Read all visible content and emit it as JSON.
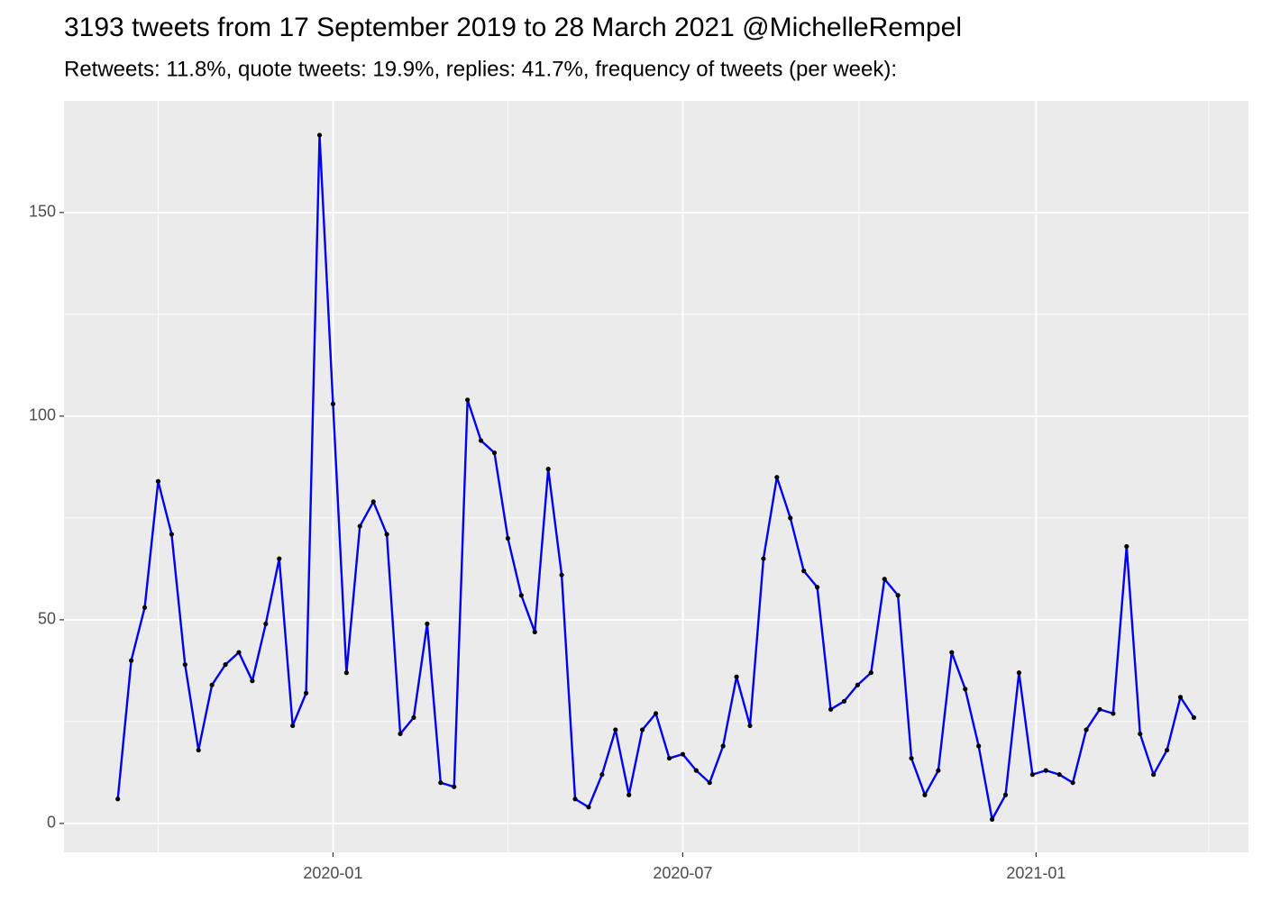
{
  "chart_data": {
    "type": "line",
    "title": "3193 tweets from 17 September 2019 to 28 March 2021 @MichelleRempel",
    "subtitle": "Retweets: 11.8%, quote tweets: 19.9%, replies: 41.7%, frequency of tweets (per week):",
    "series": [
      {
        "color": "#0000ee",
        "marker_color": "#000000",
        "values": [
          6,
          40,
          53,
          84,
          71,
          39,
          18,
          34,
          39,
          42,
          35,
          49,
          65,
          24,
          32,
          169,
          103,
          37,
          73,
          79,
          71,
          22,
          26,
          49,
          10,
          9,
          104,
          94,
          91,
          70,
          56,
          47,
          87,
          61,
          6,
          4,
          12,
          23,
          7,
          23,
          27,
          16,
          17,
          13,
          10,
          19,
          36,
          24,
          65,
          85,
          75,
          62,
          58,
          28,
          30,
          34,
          37,
          60,
          56,
          16,
          7,
          13,
          42,
          33,
          19,
          1,
          7,
          37,
          12,
          13,
          12,
          10,
          23,
          28,
          27,
          68,
          22,
          12,
          18,
          31,
          26
        ]
      }
    ],
    "xlim": [
      -4,
      84.06
    ],
    "xticks": [
      {
        "value": 16,
        "label": "2020-01"
      },
      {
        "value": 42,
        "label": "2020-07"
      },
      {
        "value": 68.27,
        "label": "2021-01"
      }
    ],
    "xminorticks": [
      3,
      29,
      55.1,
      81.1
    ],
    "ylim": [
      -7.1,
      177.4
    ],
    "yticks": [
      0,
      50,
      100,
      150
    ],
    "yminorticks": [
      25,
      75,
      125
    ],
    "grid": true,
    "panel_color": "#ebebeb"
  }
}
